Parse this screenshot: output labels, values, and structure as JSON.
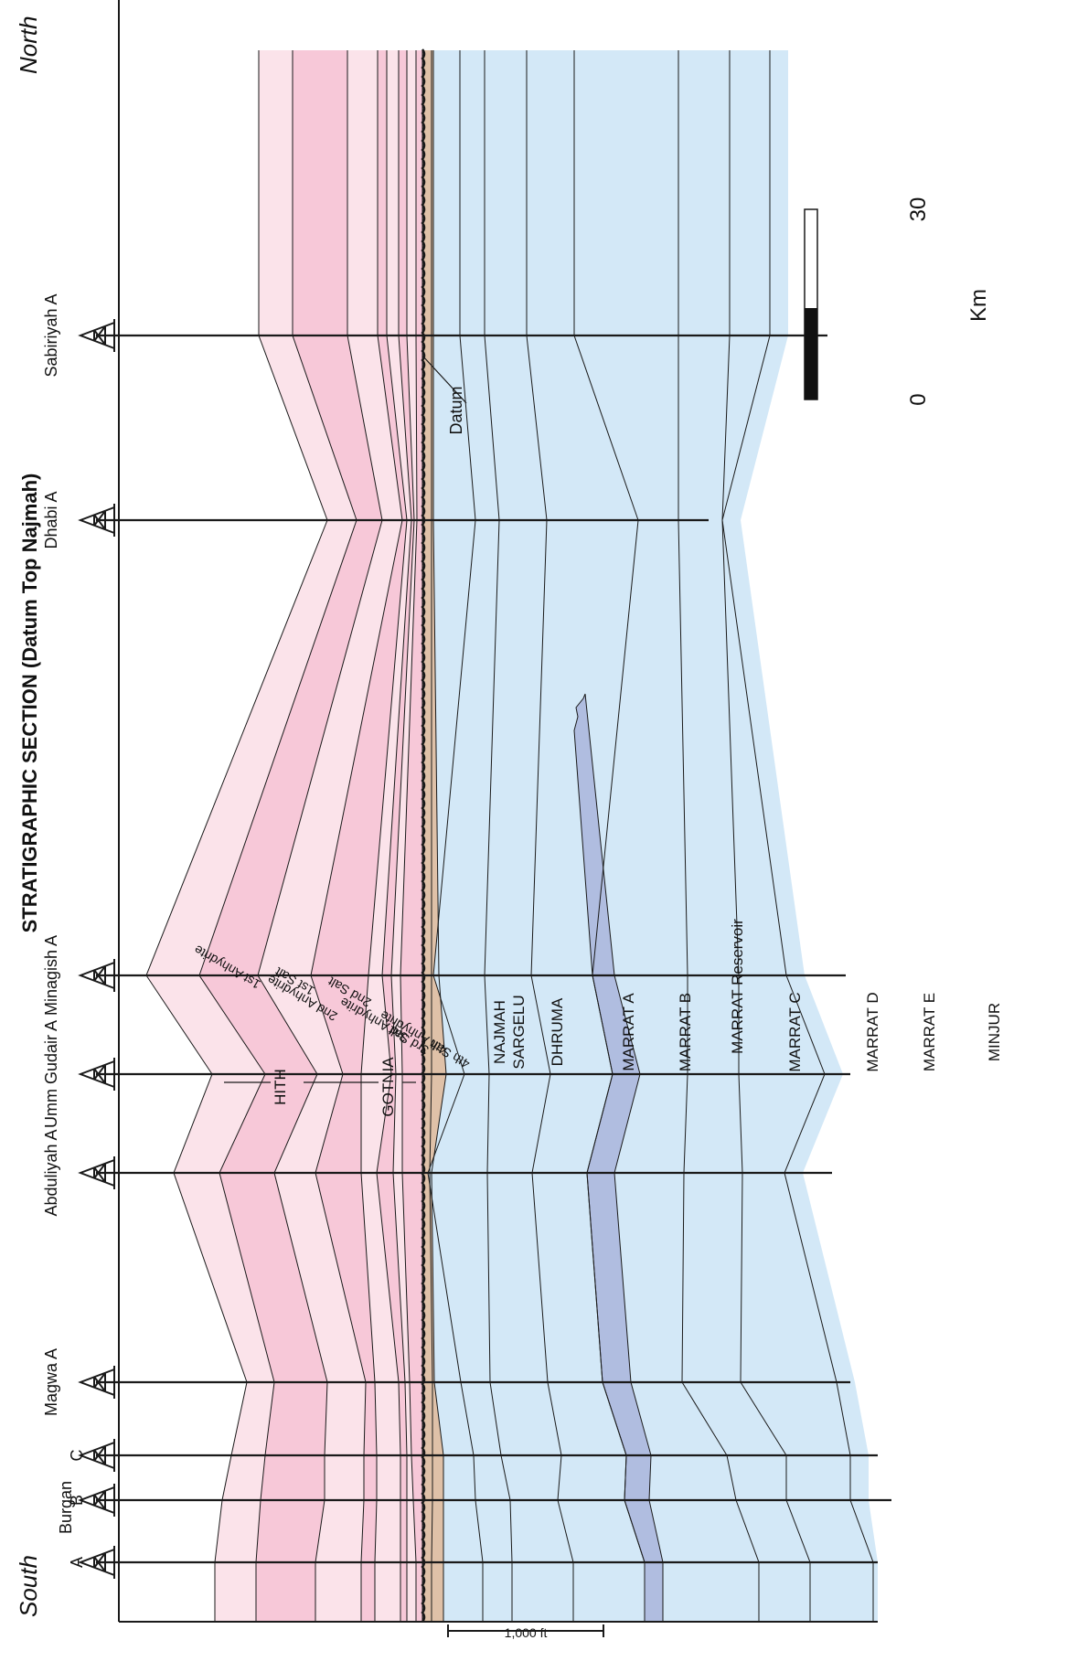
{
  "title": "STRATIGRAPHIC SECTION (Datum Top Najmah)",
  "directions": {
    "left": "South",
    "right": "North"
  },
  "wells": [
    {
      "name": "A",
      "group": "Burgan"
    },
    {
      "name": "B",
      "group": "Burgan"
    },
    {
      "name": "C",
      "group": "Burgan"
    },
    {
      "name": "Magwa A"
    },
    {
      "name": "Abduliyah A"
    },
    {
      "name": "Umm Gudair A"
    },
    {
      "name": "Minagish A"
    },
    {
      "name": "Dhabi A"
    },
    {
      "name": "Sabiriyah A"
    }
  ],
  "well_group_label": "Burgan",
  "datum_label": "Datum",
  "units": {
    "hith": "HITH",
    "gotnia": "GOTNIA",
    "najmah": "NAJMAH",
    "sargelu": "SARGELU",
    "dhruma": "DHRUMA",
    "marrat_a": "MARRAT A",
    "marrat_b": "MARRAT B",
    "marrat_reservoir": "MARRAT Reservoir",
    "marrat_c": "MARRAT C",
    "marrat_d": "MARRAT D",
    "marrat_e": "MARRAT E",
    "minjur": "MINJUR"
  },
  "sublayers": {
    "anhydrite_1": "1st Anhydrite",
    "salt_1": "1st Salt",
    "anhydrite_2": "2nd Anhydrite",
    "salt_2": "2nd Salt",
    "anhydrite_3": "3rd Anhydrite",
    "salt_3": "3rd Salt",
    "anhydrite_4": "4th Anhydrite",
    "salt_4": "4th Salt"
  },
  "thickness_scale_label": "1,000 ft",
  "distance_scale": {
    "min": "0",
    "max": "30",
    "unit": "Km"
  },
  "colors": {
    "anhydrite": "#fbe3ea",
    "salt": "#f7c8d8",
    "najmah": "#dfc1a8",
    "marrat": "#d3e8f7",
    "reservoir": "#b0bde0",
    "line": "#1a1a1a"
  }
}
